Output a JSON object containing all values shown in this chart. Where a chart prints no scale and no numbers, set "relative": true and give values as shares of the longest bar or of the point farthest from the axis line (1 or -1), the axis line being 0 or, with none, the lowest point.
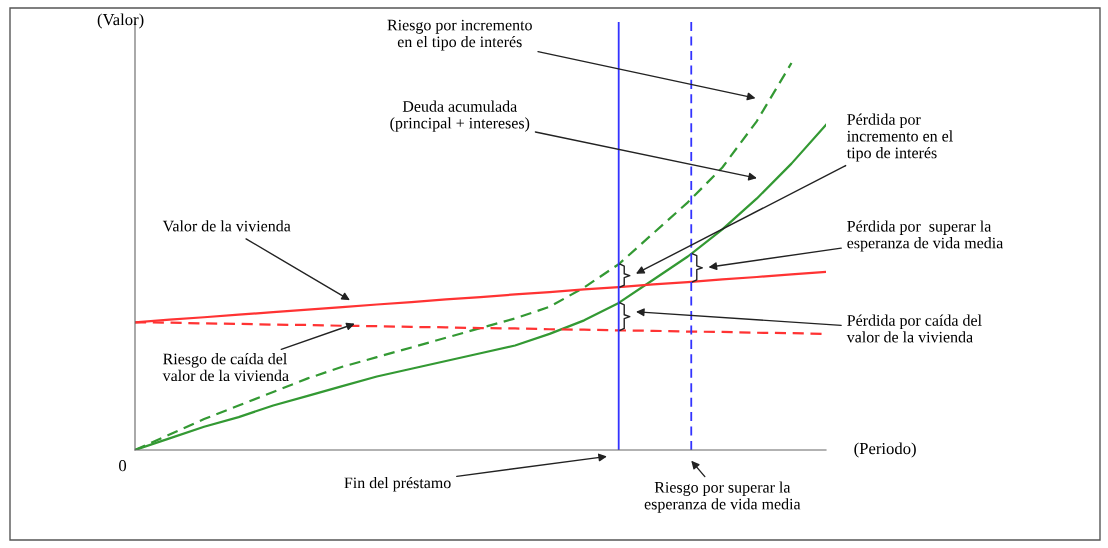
{
  "chart_data": {
    "type": "line",
    "relative": true,
    "xlabel": "(Periodo)",
    "ylabel": "(Valor)",
    "marker": "none",
    "categories": [
      null,
      null,
      null,
      null,
      null,
      null,
      null,
      null,
      null,
      null,
      null,
      null,
      null,
      null,
      null,
      null,
      null,
      null,
      null,
      null,
      null
    ],
    "series": [
      {
        "color": "#339933",
        "line_style": "dashed",
        "values": [
          0,
          0.04,
          0.08,
          0.115,
          0.15,
          0.185,
          0.215,
          0.24,
          0.265,
          0.29,
          0.315,
          0.34,
          0.37,
          0.42,
          0.48,
          0.56,
          0.64,
          0.73,
          0.85,
          1,
          null
        ]
      },
      {
        "color": "#339933",
        "line_style": "solid",
        "values": [
          0,
          0.03,
          0.06,
          0.085,
          0.115,
          0.14,
          0.165,
          0.19,
          0.21,
          0.23,
          0.25,
          0.27,
          0.3,
          0.335,
          0.38,
          0.44,
          0.5,
          0.57,
          0.65,
          0.74,
          0.84
        ]
      },
      {
        "color": "#ff3333",
        "line_style": "solid",
        "values": [
          0.33,
          0.337,
          0.343,
          0.35,
          0.356,
          0.363,
          0.369,
          0.376,
          0.382,
          0.389,
          0.395,
          0.402,
          0.408,
          0.415,
          0.421,
          0.428,
          0.434,
          0.441,
          0.447,
          0.454,
          0.46
        ]
      },
      {
        "color": "#ff3333",
        "line_style": "dashed",
        "values": [
          0.33,
          0.329,
          0.327,
          0.326,
          0.324,
          0.323,
          0.321,
          0.32,
          0.318,
          0.317,
          0.315,
          0.314,
          0.312,
          0.311,
          0.309,
          0.308,
          0.306,
          0.305,
          0.303,
          0.302,
          0.3
        ]
      }
    ],
    "annotations": [
      "Riesgo por incremento\nen el tipo de interés",
      "Deuda acumulada\n(principal + intereses)",
      "Valor de la vivienda",
      "Riesgo de caída del\nvalor de la vivienda",
      "Pérdida por\nincremento en el\ntipo de interés",
      "Pérdida por  superar la\nesperanza de vida media",
      "Pérdida por caída del\nvalor de la vivienda",
      "Fin del préstamo",
      "Riesgo por superar la\nesperanza de vida media",
      "0"
    ]
  }
}
